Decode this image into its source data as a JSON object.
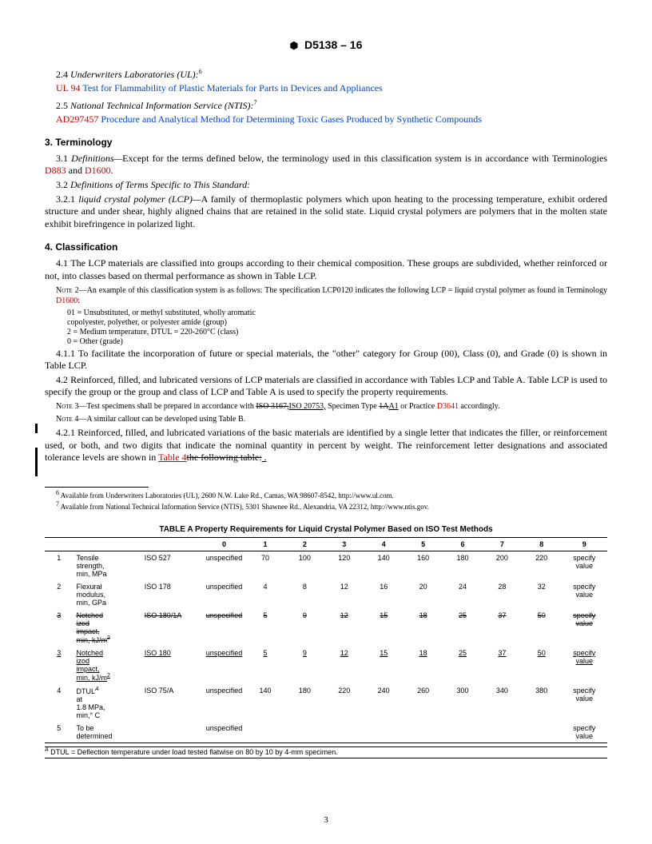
{
  "header": {
    "logo_text": "ASTM",
    "doc_id": "D5138 – 16"
  },
  "refs": {
    "r24_num": "2.4",
    "r24_src": "Underwriters Laboratories (UL):",
    "r24_sup": "6",
    "r24_code": "UL 94",
    "r24_title": "Test for Flammability of Plastic Materials for Parts in Devices and Appliances",
    "r25_num": "2.5",
    "r25_src": "National Technical Information Service (NTIS):",
    "r25_sup": "7",
    "r25_code": "AD297457",
    "r25_title": "Procedure and Analytical Method for Determining Toxic Gases Produced by Synthetic Compounds"
  },
  "sec3": {
    "heading": "3. Terminology",
    "p31a": "3.1 ",
    "p31b": "Definitions—",
    "p31c": "Except for the terms defined below, the terminology used in this classification system is in accordance with Terminologies ",
    "p31_link1": "D883",
    "p31d": " and ",
    "p31_link2": "D1600",
    "p31e": ".",
    "p32a": "3.2 ",
    "p32b": "Definitions of Terms Specific to This Standard:",
    "p321a": "3.2.1 ",
    "p321b": "liquid crystal polymer (LCP)—",
    "p321c": "A family of thermoplastic polymers which upon heating to the processing temperature, exhibit ordered structure and under shear, highly aligned chains that are retained in the solid state. Liquid crystal polymers are polymers that in the molten state exhibit birefringence in polarized light."
  },
  "sec4": {
    "heading": "4. Classification",
    "p41": "4.1 The LCP materials are classified into groups according to their chemical composition. These groups are subdivided, whether reinforced or not, into classes based on thermal performance as shown in Table LCP.",
    "n2_lead": "Note 2—",
    "n2a": "An example of this classification system is as follows: The specification LCP0120 indicates the following LCP = liquid crystal polymer as found in Terminology ",
    "n2_link": "D1600",
    "n2b": ":",
    "n2_l1": "01 = Unsubstituted, or methyl substituted, wholly aromatic",
    "n2_l2": "copolyester, polyether, or polyester amide (group)",
    "n2_l3": "2 = Medium temperature, DTUL = 220-260°C (class)",
    "n2_l4": "0 = Other (grade)",
    "p411": "4.1.1 To facilitate the incorporation of future or special materials, the \"other\" category for Group (00), Class (0), and Grade (0) is shown in Table LCP.",
    "p42": "4.2 Reinforced, filled, and lubricated versions of LCP materials are classified in accordance with Tables LCP and Table A. Table LCP is used to specify the group or the group and class of LCP and Table A is used to specify the property requirements.",
    "n3_lead": "Note 3—",
    "n3a": "Test specimens shall be prepared in accordance with ",
    "n3_strike1": "ISO 3167,",
    "n3_ins1": "ISO 20753,",
    "n3b": " Specimen Type ",
    "n3_strike2": "1A",
    "n3_ins2": "A1",
    "n3c": " or Practice ",
    "n3_link": "D3641",
    "n3d": " accordingly.",
    "n4_lead": "Note 4—",
    "n4": "A similar callout can be developed using Table B.",
    "p421a": "4.2.1 Reinforced, filled, and lubricated variations of the basic materials are identified by a single letter that indicates the filler, or reinforcement used, or both, and two digits that indicate the nominal quantity in percent by weight. The reinforcement letter designations and associated tolerance levels are shown in ",
    "p421_ins": "Table 4",
    "p421_strike": "the following table:",
    "p421_end": " ."
  },
  "footnotes": {
    "f6_sup": "6",
    "f6": " Available from Underwriters Laboratories (UL), 2600 N.W. Lake Rd., Camas, WA 98607-8542, http://www.ul.com.",
    "f7_sup": "7",
    "f7": " Available from National Technical Information Service (NTIS), 5301 Shawnee Rd., Alexandria, VA 22312, http://www.ntis.gov."
  },
  "tableA": {
    "title": "TABLE  A   Property Requirements for Liquid Crystal Polymer Based on ISO Test Methods",
    "cols": [
      "",
      "",
      "",
      "0",
      "1",
      "2",
      "3",
      "4",
      "5",
      "6",
      "7",
      "8",
      "9"
    ],
    "rows": [
      {
        "n": "1",
        "prop_l1": "Tensile",
        "prop_l2": "strength,",
        "prop_l3": "min, MPa",
        "std": "ISO 527",
        "v": [
          "unspecified",
          "70",
          "100",
          "120",
          "140",
          "160",
          "180",
          "200",
          "220",
          "specify value"
        ],
        "strike": false,
        "under": false
      },
      {
        "n": "2",
        "prop_l1": "Flexural",
        "prop_l2": "modulus,",
        "prop_l3": "min, GPa",
        "std": "ISO 178",
        "v": [
          "unspecified",
          "4",
          "8",
          "12",
          "16",
          "20",
          "24",
          "28",
          "32",
          "specify value"
        ],
        "strike": false,
        "under": false
      },
      {
        "n": "3",
        "prop_l1": "Notched",
        "prop_l2": "izod",
        "prop_l3": "impact,",
        "prop_l4": "min, kJ/m",
        "prop_sup": "2",
        "std": "ISO 180/1A",
        "v": [
          "unspecified",
          "5",
          "9",
          "12",
          "15",
          "18",
          "25",
          "37",
          "50",
          "specify value"
        ],
        "strike": true,
        "under": false
      },
      {
        "n": "3",
        "prop_l1": "Notched",
        "prop_l2": "izod",
        "prop_l3": "impact,",
        "prop_l4": "min, kJ/m",
        "prop_sup": "2",
        "std": "ISO 180",
        "v": [
          "unspecified",
          "5",
          "9",
          "12",
          "15",
          "18",
          "25",
          "37",
          "50",
          "specify value"
        ],
        "strike": false,
        "under": true
      },
      {
        "n": "4",
        "prop_l1": "DTUL",
        "prop_supA": "A",
        "prop_l2": " at",
        "prop_l3": "1.8 MPa,",
        "prop_l4": "min,° C",
        "std": "ISO 75/A",
        "v": [
          "unspecified",
          "140",
          "180",
          "220",
          "240",
          "260",
          "300",
          "340",
          "380",
          "specify value"
        ],
        "strike": false,
        "under": false
      },
      {
        "n": "5",
        "prop_l1": "To be",
        "prop_l2": "determined",
        "std": "",
        "v": [
          "unspecified",
          "",
          "",
          "",
          "",
          "",
          "",
          "",
          "",
          "specify value"
        ],
        "strike": false,
        "under": false
      }
    ],
    "note_sup": "A",
    "note": " DTUL = Deflection temperature under load tested flatwise on 80 by 10 by 4-mm specimen."
  },
  "page_num": "3"
}
